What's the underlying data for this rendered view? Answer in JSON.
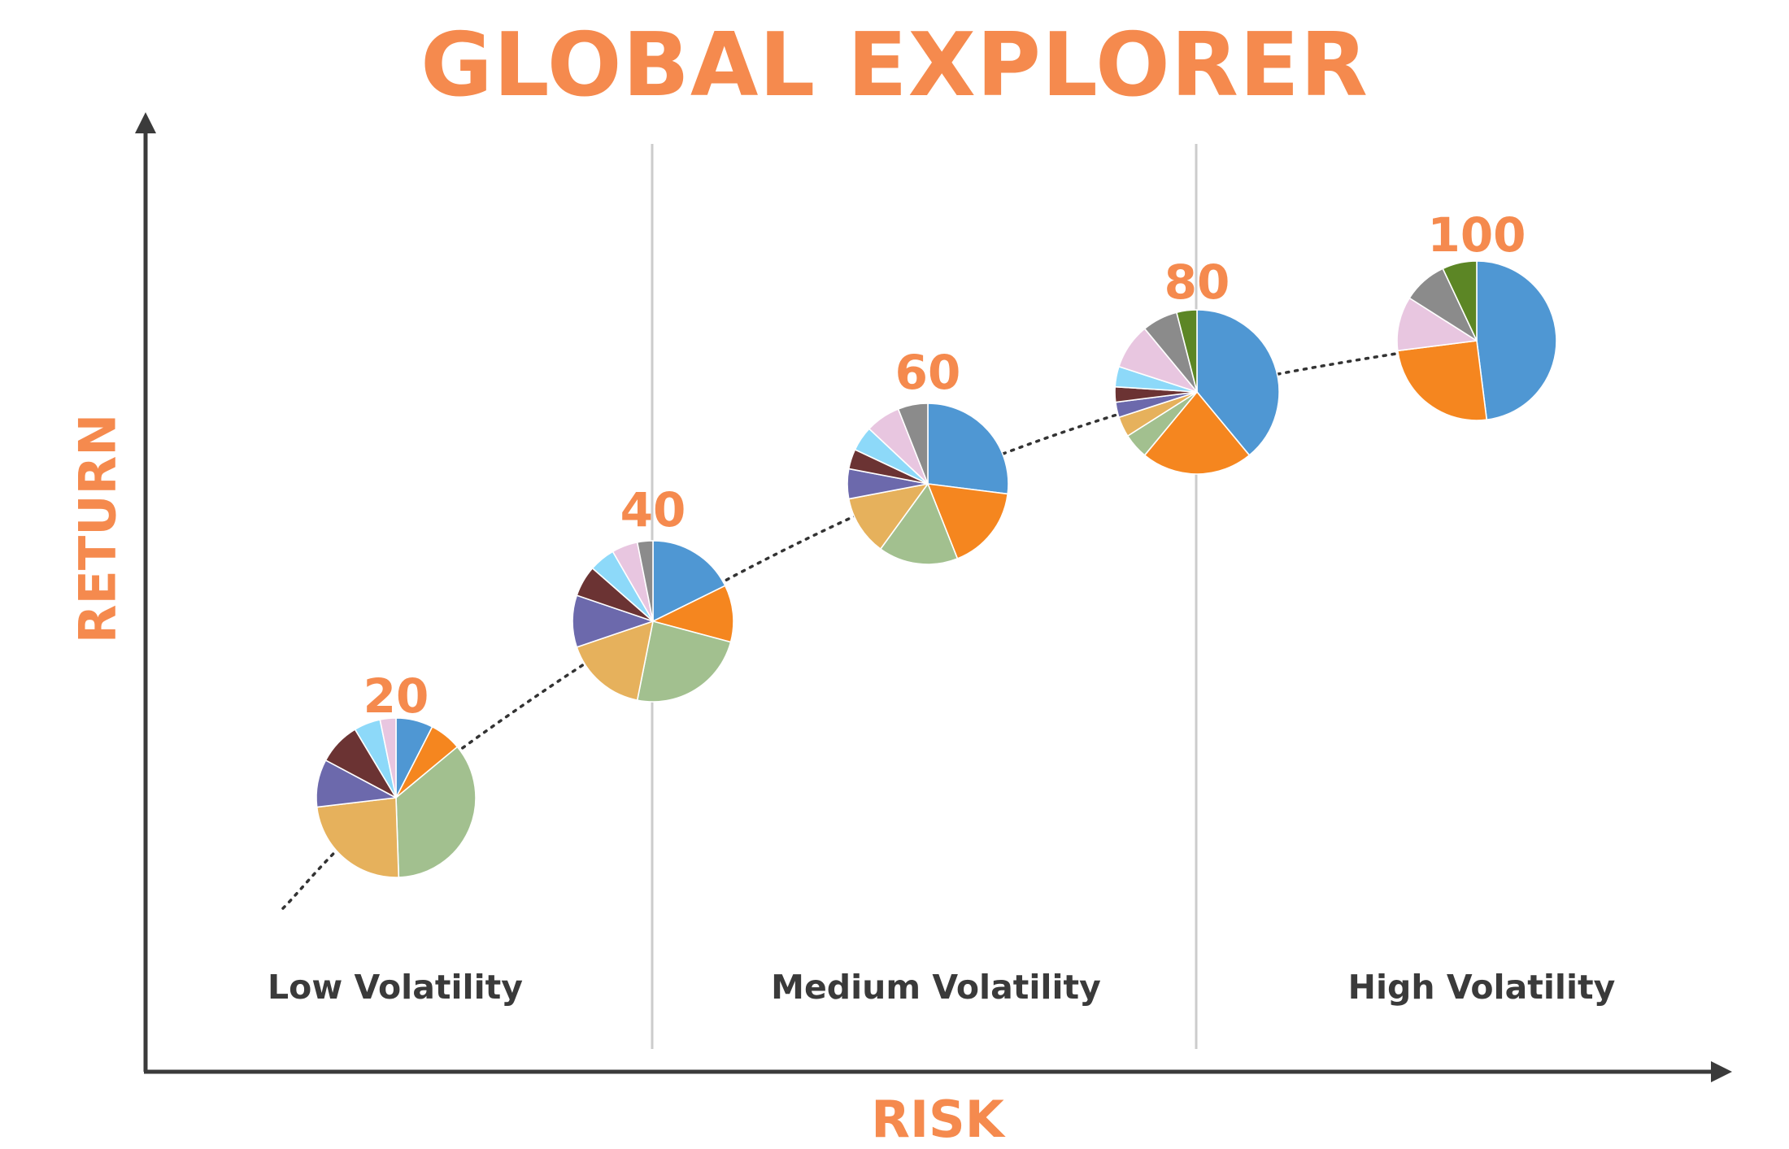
{
  "title": "GLOBAL EXPLORER",
  "colors": {
    "accent": "#F58A4E",
    "axis": "#3b3b3b",
    "divider": "#cccccc",
    "trend": "#333333",
    "slice_palette": [
      "#4f97d3",
      "#f5861f",
      "#a2c08f",
      "#e6b15c",
      "#6c69ac",
      "#6b3333",
      "#8dd9f9",
      "#e8c6e0",
      "#8b8b8b",
      "#5c8625"
    ]
  },
  "chart_data": {
    "type": "scatter",
    "title": "GLOBAL EXPLORER",
    "xlabel": "RISK",
    "ylabel": "RETURN",
    "zones": [
      "Low Volatility",
      "Medium Volatility",
      "High Volatility"
    ],
    "legend": "none",
    "grid": false,
    "trendline": "dotted",
    "portfolios": [
      {
        "label": "20",
        "slices": [
          7,
          6,
          33,
          22,
          9,
          8,
          5,
          3,
          0,
          0
        ]
      },
      {
        "label": "40",
        "slices": [
          17,
          11,
          23,
          16,
          10,
          6,
          5,
          5,
          3,
          0
        ]
      },
      {
        "label": "60",
        "slices": [
          27,
          17,
          16,
          12,
          6,
          4,
          5,
          7,
          6,
          0
        ]
      },
      {
        "label": "80",
        "slices": [
          39,
          22,
          5,
          4,
          3,
          3,
          4,
          9,
          7,
          4
        ]
      },
      {
        "label": "100",
        "slices": [
          48,
          25,
          0,
          0,
          0,
          0,
          0,
          11,
          9,
          7
        ]
      }
    ]
  }
}
